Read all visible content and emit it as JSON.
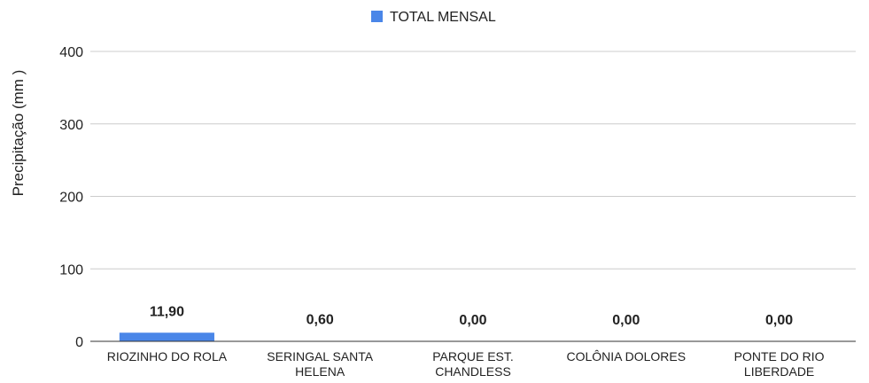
{
  "chart_data": {
    "type": "bar",
    "title": "",
    "xlabel": "",
    "ylabel": "Precipitação (mm )",
    "ylim": [
      0,
      400
    ],
    "yticks": [
      0,
      100,
      200,
      300,
      400
    ],
    "grid": true,
    "legend_position": "top-center",
    "categories": [
      [
        "RIOZINHO DO ROLA"
      ],
      [
        "SERINGAL SANTA",
        "HELENA"
      ],
      [
        "PARQUE EST.",
        "CHANDLESS"
      ],
      [
        "COLÔNIA DOLORES"
      ],
      [
        "PONTE DO RIO",
        "LIBERDADE"
      ]
    ],
    "series": [
      {
        "name": "TOTAL MENSAL",
        "color": "#4a86e8",
        "values": [
          11.9,
          0.6,
          0.0,
          0.0,
          0.0
        ],
        "labels": [
          "11,90",
          "0,60",
          "0,00",
          "0,00",
          "0,00"
        ]
      }
    ]
  }
}
